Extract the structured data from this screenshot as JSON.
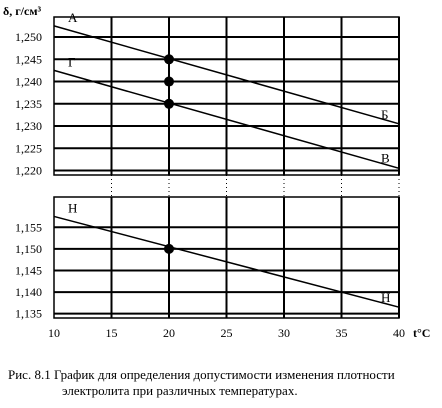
{
  "chart_data": {
    "type": "line",
    "ylabel": "δ, г/см³",
    "xlabel": "t°С",
    "x_ticks": [
      "10",
      "15",
      "20",
      "25",
      "30",
      "35",
      "40"
    ],
    "xlim": [
      10,
      40
    ],
    "panels": [
      {
        "ylim": [
          1.219,
          1.2545
        ],
        "y_ticks": [
          "1,250",
          "1,245",
          "1,240",
          "1,235",
          "1,230",
          "1,225",
          "1,220"
        ],
        "y_tick_values": [
          1.25,
          1.245,
          1.24,
          1.235,
          1.23,
          1.225,
          1.22
        ],
        "series": [
          {
            "label_start": "А",
            "label_end": "Б",
            "x": [
              10,
              40
            ],
            "y": [
              1.2525,
              1.2305
            ]
          },
          {
            "label_start": "Г",
            "label_end": "В",
            "x": [
              10,
              40
            ],
            "y": [
              1.2425,
              1.2205
            ]
          }
        ],
        "points": [
          {
            "x": 20,
            "y": 1.245
          },
          {
            "x": 20,
            "y": 1.24
          },
          {
            "x": 20,
            "y": 1.235
          }
        ]
      },
      {
        "ylim": [
          1.134,
          1.162
        ],
        "y_ticks": [
          "1,155",
          "1,150",
          "1,145",
          "1,140",
          "1,135"
        ],
        "y_tick_values": [
          1.155,
          1.15,
          1.145,
          1.14,
          1.135
        ],
        "series": [
          {
            "label_start": "Н",
            "label_end": "Н",
            "x": [
              10,
              40
            ],
            "y": [
              1.1575,
              1.1365
            ]
          }
        ],
        "points": [
          {
            "x": 20,
            "y": 1.15
          }
        ]
      }
    ]
  },
  "caption": {
    "line1": "Рис. 8.1 График для определения допустимости изменения плотности",
    "line2": "электролита при различных температурах."
  }
}
